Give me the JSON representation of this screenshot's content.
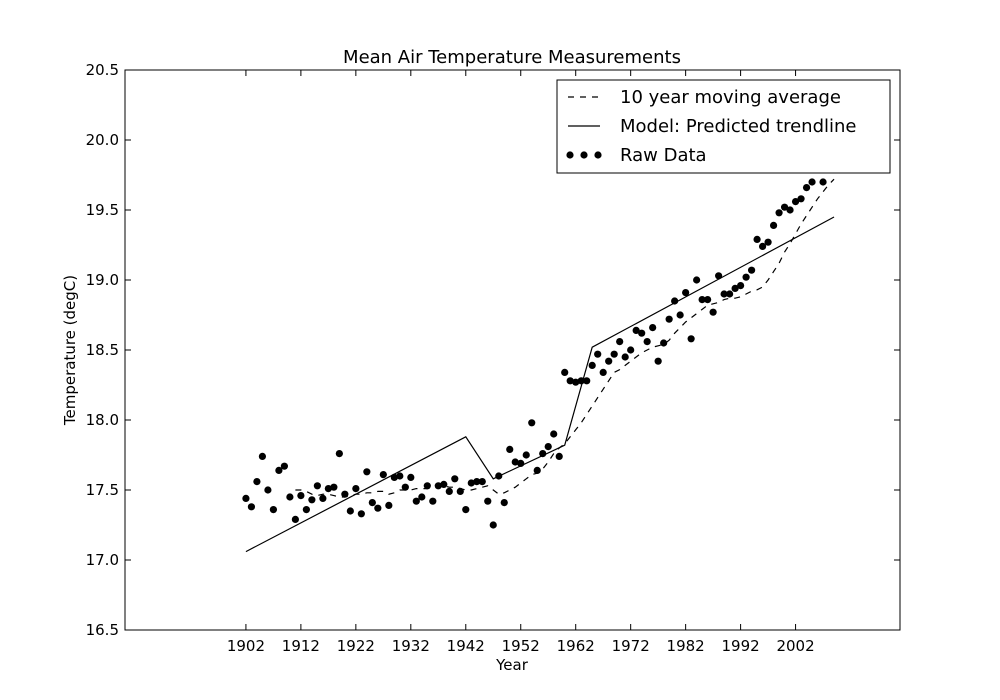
{
  "chart_data": {
    "type": "line",
    "title": "Mean Air Temperature Measurements",
    "xlabel": "Year",
    "ylabel": "Temperature (degC)",
    "xlim": [
      1880,
      2021
    ],
    "ylim": [
      16.5,
      20.5
    ],
    "x_ticks": [
      1902,
      1912,
      1922,
      1932,
      1942,
      1952,
      1962,
      1972,
      1982,
      1992,
      2002
    ],
    "y_ticks": [
      "16.5",
      "17.0",
      "17.5",
      "18.0",
      "18.5",
      "19.0",
      "19.5",
      "20.0",
      "20.5"
    ],
    "grid": false,
    "legend_position": "top-right",
    "series": [
      {
        "name": "10 year moving average",
        "style": "dashed",
        "color": "#000000",
        "x": [
          1911,
          1912,
          1913,
          1914,
          1915,
          1916,
          1917,
          1918,
          1919,
          1920,
          1921,
          1922,
          1923,
          1924,
          1925,
          1926,
          1927,
          1928,
          1929,
          1930,
          1931,
          1932,
          1933,
          1934,
          1935,
          1936,
          1937,
          1938,
          1939,
          1940,
          1941,
          1942,
          1943,
          1944,
          1945,
          1946,
          1947,
          1948,
          1949,
          1950,
          1951,
          1952,
          1953,
          1954,
          1955,
          1956,
          1957,
          1958,
          1959,
          1960,
          1961,
          1962,
          1963,
          1964,
          1965,
          1966,
          1967,
          1968,
          1969,
          1970,
          1971,
          1972,
          1973,
          1974,
          1975,
          1976,
          1977,
          1978,
          1979,
          1980,
          1981,
          1982,
          1983,
          1984,
          1985,
          1986,
          1987,
          1988,
          1989,
          1990,
          1991,
          1992,
          1993,
          1994,
          1995,
          1996,
          1997,
          1998,
          1999,
          2000,
          2001,
          2002,
          2003,
          2004,
          2005,
          2006,
          2007,
          2008,
          2009
        ],
        "y": [
          17.5,
          17.5,
          17.49,
          17.47,
          17.46,
          17.47,
          17.47,
          17.46,
          17.45,
          17.45,
          17.46,
          17.47,
          17.47,
          17.48,
          17.48,
          17.49,
          17.49,
          17.47,
          17.48,
          17.5,
          17.5,
          17.5,
          17.51,
          17.51,
          17.51,
          17.52,
          17.52,
          17.53,
          17.52,
          17.52,
          17.51,
          17.5,
          17.5,
          17.51,
          17.52,
          17.53,
          17.5,
          17.47,
          17.48,
          17.5,
          17.52,
          17.55,
          17.58,
          17.61,
          17.62,
          17.65,
          17.7,
          17.76,
          17.8,
          17.83,
          17.88,
          17.93,
          17.98,
          18.04,
          18.1,
          18.16,
          18.22,
          18.28,
          18.34,
          18.36,
          18.39,
          18.42,
          18.45,
          18.48,
          18.5,
          18.52,
          18.53,
          18.54,
          18.57,
          18.62,
          18.66,
          18.7,
          18.73,
          18.76,
          18.79,
          18.82,
          18.83,
          18.84,
          18.86,
          18.87,
          18.87,
          18.88,
          18.9,
          18.92,
          18.93,
          18.95,
          19.0,
          19.06,
          19.12,
          19.2,
          19.26,
          19.33,
          19.4,
          19.46,
          19.52,
          19.58,
          19.63,
          19.68,
          19.72
        ]
      },
      {
        "name": "Model: Predicted trendline",
        "style": "solid",
        "color": "#000000",
        "x": [
          1902,
          1942,
          1947,
          1960,
          1965,
          2009
        ],
        "y": [
          17.06,
          17.88,
          17.58,
          17.82,
          18.52,
          19.45
        ]
      },
      {
        "name": "Raw Data",
        "style": "markers",
        "color": "#000000",
        "x": [
          1902,
          1903,
          1904,
          1905,
          1906,
          1907,
          1908,
          1909,
          1910,
          1911,
          1912,
          1913,
          1914,
          1915,
          1916,
          1917,
          1918,
          1919,
          1920,
          1921,
          1922,
          1923,
          1924,
          1925,
          1926,
          1927,
          1928,
          1929,
          1930,
          1931,
          1932,
          1933,
          1934,
          1935,
          1936,
          1937,
          1938,
          1939,
          1940,
          1941,
          1942,
          1943,
          1944,
          1945,
          1946,
          1947,
          1948,
          1949,
          1950,
          1951,
          1952,
          1953,
          1954,
          1955,
          1956,
          1957,
          1958,
          1959,
          1960,
          1961,
          1962,
          1963,
          1964,
          1965,
          1966,
          1967,
          1968,
          1969,
          1970,
          1971,
          1972,
          1973,
          1974,
          1975,
          1976,
          1977,
          1978,
          1979,
          1980,
          1981,
          1982,
          1983,
          1984,
          1985,
          1986,
          1987,
          1988,
          1989,
          1990,
          1991,
          1992,
          1993,
          1994,
          1995,
          1996,
          1997,
          1998,
          1999,
          2000,
          2001,
          2002,
          2003,
          2004,
          2005,
          2007
        ],
        "y": [
          17.44,
          17.38,
          17.56,
          17.74,
          17.5,
          17.36,
          17.64,
          17.67,
          17.45,
          17.29,
          17.46,
          17.36,
          17.43,
          17.53,
          17.44,
          17.51,
          17.52,
          17.76,
          17.47,
          17.35,
          17.51,
          17.33,
          17.63,
          17.41,
          17.37,
          17.61,
          17.39,
          17.59,
          17.6,
          17.52,
          17.59,
          17.42,
          17.45,
          17.53,
          17.42,
          17.53,
          17.54,
          17.49,
          17.58,
          17.49,
          17.36,
          17.55,
          17.56,
          17.56,
          17.42,
          17.25,
          17.6,
          17.41,
          17.79,
          17.7,
          17.69,
          17.75,
          17.98,
          17.64,
          17.76,
          17.81,
          17.9,
          17.74,
          18.34,
          18.28,
          18.27,
          18.28,
          18.28,
          18.39,
          18.47,
          18.34,
          18.42,
          18.47,
          18.56,
          18.45,
          18.5,
          18.64,
          18.62,
          18.56,
          18.66,
          18.42,
          18.55,
          18.72,
          18.85,
          18.75,
          18.91,
          18.58,
          19.0,
          18.86,
          18.86,
          18.77,
          19.03,
          18.9,
          18.9,
          18.94,
          18.96,
          19.02,
          19.07,
          19.29,
          19.24,
          19.27,
          19.39,
          19.48,
          19.52,
          19.5,
          19.56,
          19.58,
          19.66,
          19.7,
          19.7
        ]
      }
    ]
  }
}
